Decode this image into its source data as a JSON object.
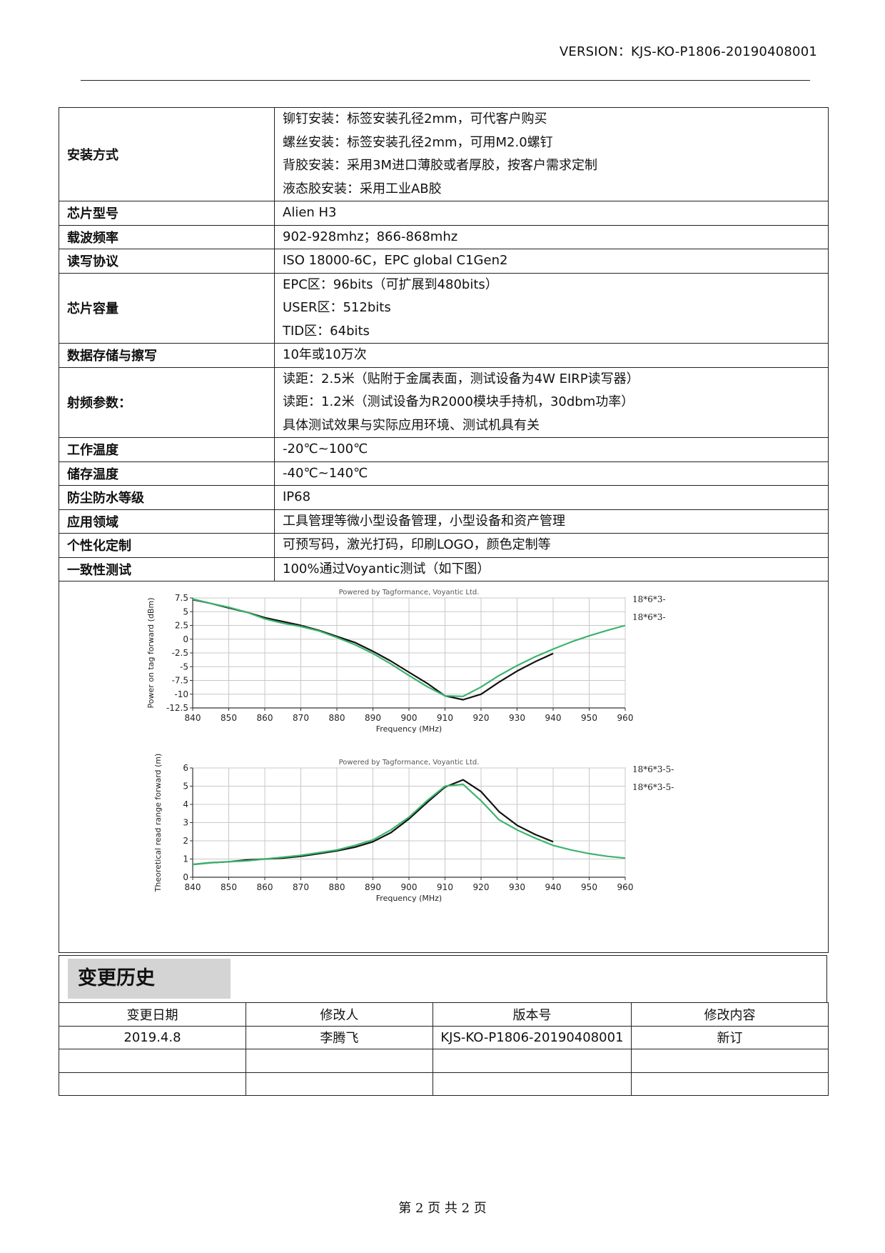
{
  "header": {
    "version": "VERSION：KJS-KO-P1806-20190408001"
  },
  "spec_rows": [
    {
      "label": "安装方式",
      "lines": [
        "铆钉安装：标签安装孔径2mm，可代客户购买",
        "螺丝安装：标签安装孔径2mm，可用M2.0螺钉",
        "背胶安装：采用3M进口薄胶或者厚胶，按客户需求定制",
        "液态胶安装：采用工业AB胶"
      ]
    },
    {
      "label": "芯片型号",
      "lines": [
        "Alien H3"
      ]
    },
    {
      "label": "载波频率",
      "lines": [
        "902-928mhz；866-868mhz"
      ]
    },
    {
      "label": "读写协议",
      "lines": [
        "ISO 18000-6C，EPC global C1Gen2"
      ]
    },
    {
      "label": "芯片容量",
      "lines": [
        "EPC区：96bits（可扩展到480bits）",
        "USER区：512bits",
        "TID区：64bits"
      ]
    },
    {
      "label": "数据存储与擦写",
      "lines": [
        "10年或10万次"
      ]
    },
    {
      "label": "射频参数：",
      "lines": [
        "读距：2.5米（贴附于金属表面，测试设备为4W EIRP读写器）",
        "读距：1.2米（测试设备为R2000模块手持机，30dbm功率）",
        "具体测试效果与实际应用环境、测试机具有关"
      ]
    },
    {
      "label": "工作温度",
      "lines": [
        "-20℃~100℃"
      ]
    },
    {
      "label": "储存温度",
      "lines": [
        "-40℃~140℃"
      ]
    },
    {
      "label": "防尘防水等级",
      "lines": [
        "IP68"
      ]
    },
    {
      "label": "应用领域",
      "lines": [
        "工具管理等微小型设备管理，小型设备和资产管理"
      ]
    },
    {
      "label": "个性化定制",
      "lines": [
        "可预写码，激光打码，印刷LOGO，颜色定制等"
      ]
    },
    {
      "label": "一致性测试",
      "lines": [
        "100%通过Voyantic测试（如下图）"
      ]
    }
  ],
  "chart_data": [
    {
      "type": "line",
      "watermark": "Powered by Tagformance, Voyantic Ltd.",
      "xlabel": "Frequency (MHz)",
      "ylabel": "Power on tag forward (dBm)",
      "xlim": [
        840,
        960
      ],
      "ylim": [
        -12.5,
        7.5
      ],
      "xticks": [
        840,
        850,
        860,
        870,
        880,
        890,
        900,
        910,
        920,
        930,
        940,
        950,
        960
      ],
      "yticks": [
        7.5,
        5,
        2.5,
        0,
        -2.5,
        -5,
        -7.5,
        -10,
        -12.5
      ],
      "ytick_labels": [
        "7.5",
        "5",
        "2.5",
        "0",
        "-2.5",
        "-5",
        "-7.5",
        "-10",
        "-12.5"
      ],
      "grid": true,
      "legend_position": "right",
      "series": [
        {
          "name": "18*6*3-",
          "color": "#111111",
          "x": [
            840,
            845,
            850,
            855,
            860,
            865,
            870,
            875,
            880,
            885,
            890,
            895,
            900,
            905,
            910,
            915,
            920,
            925,
            930,
            935,
            940
          ],
          "y": [
            7.2,
            6.5,
            5.7,
            4.9,
            3.9,
            3.2,
            2.5,
            1.6,
            0.5,
            -0.6,
            -2.2,
            -4.0,
            -6.0,
            -8.0,
            -10.3,
            -11.0,
            -10.0,
            -7.8,
            -5.8,
            -4.1,
            -2.6
          ]
        },
        {
          "name": "18*6*3-",
          "color": "#3cb46e",
          "x": [
            840,
            845,
            850,
            855,
            860,
            865,
            870,
            875,
            880,
            885,
            890,
            895,
            900,
            905,
            910,
            915,
            920,
            925,
            930,
            935,
            940,
            945,
            950,
            955,
            960
          ],
          "y": [
            7.3,
            6.5,
            5.8,
            4.9,
            3.7,
            2.9,
            2.3,
            1.5,
            0.3,
            -1.0,
            -2.6,
            -4.5,
            -6.6,
            -8.6,
            -10.3,
            -10.4,
            -8.7,
            -6.6,
            -4.8,
            -3.2,
            -1.8,
            -0.5,
            0.6,
            1.6,
            2.5
          ]
        }
      ]
    },
    {
      "type": "line",
      "watermark": "Powered by Tagformance, Voyantic Ltd.",
      "xlabel": "Frequency (MHz)",
      "ylabel": "Theoretical read range forward (m)",
      "xlim": [
        840,
        960
      ],
      "ylim": [
        0,
        6
      ],
      "xticks": [
        840,
        850,
        860,
        870,
        880,
        890,
        900,
        910,
        920,
        930,
        940,
        950,
        960
      ],
      "yticks": [
        0,
        1,
        2,
        3,
        4,
        5,
        6
      ],
      "ytick_labels": [
        "0",
        "1",
        "2",
        "3",
        "4",
        "5",
        "6"
      ],
      "grid": true,
      "legend_position": "right",
      "series": [
        {
          "name": "18*6*3-5-",
          "color": "#111111",
          "x": [
            840,
            845,
            850,
            855,
            860,
            865,
            870,
            875,
            880,
            885,
            890,
            895,
            900,
            905,
            910,
            915,
            920,
            925,
            930,
            935,
            940
          ],
          "y": [
            0.7,
            0.8,
            0.85,
            0.95,
            1.0,
            1.05,
            1.15,
            1.3,
            1.45,
            1.65,
            1.95,
            2.45,
            3.2,
            4.1,
            4.95,
            5.35,
            4.7,
            3.6,
            2.85,
            2.35,
            1.95
          ]
        },
        {
          "name": "18*6*3-5-",
          "color": "#3cb46e",
          "x": [
            840,
            845,
            850,
            855,
            860,
            865,
            870,
            875,
            880,
            885,
            890,
            895,
            900,
            905,
            910,
            915,
            920,
            925,
            930,
            935,
            940,
            945,
            950,
            955,
            960
          ],
          "y": [
            0.7,
            0.8,
            0.85,
            0.9,
            1.0,
            1.1,
            1.2,
            1.35,
            1.5,
            1.75,
            2.05,
            2.6,
            3.3,
            4.2,
            5.0,
            5.1,
            4.2,
            3.15,
            2.6,
            2.15,
            1.75,
            1.5,
            1.3,
            1.15,
            1.05
          ]
        }
      ]
    }
  ],
  "history": {
    "title": "变更历史",
    "headers": [
      "变更日期",
      "修改人",
      "版本号",
      "修改内容"
    ],
    "rows": [
      [
        "2019.4.8",
        "李腾飞",
        "KJS-KO-P1806-20190408001",
        "新订"
      ],
      [
        "",
        "",
        "",
        ""
      ],
      [
        "",
        "",
        "",
        ""
      ]
    ]
  },
  "footer": {
    "page": "第 2 页 共 2 页"
  }
}
